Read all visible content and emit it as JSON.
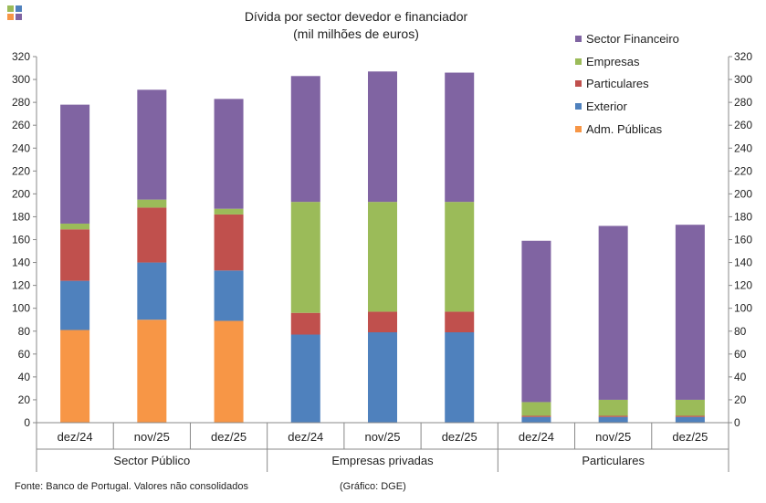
{
  "title_line1": "Dívida por sector devedor e financiador",
  "title_line2": "(mil milhões de euros)",
  "footer_source": "Fonte: Banco de Portugal. Valores não consolidados",
  "footer_credit": "(Gráfico: DGE)",
  "logo_colors": [
    "#9bbb59",
    "#4f81bd",
    "#f79646",
    "#8064a2"
  ],
  "chart_data": {
    "type": "bar",
    "stacked": true,
    "ylim": [
      0,
      320
    ],
    "yticks": [
      0,
      20,
      40,
      60,
      80,
      100,
      120,
      140,
      160,
      180,
      200,
      220,
      240,
      260,
      280,
      300,
      320
    ],
    "grid": false,
    "legend_position": "top-right",
    "groups": [
      {
        "label": "Sector Público",
        "categories": [
          "dez/24",
          "nov/25",
          "dez/25"
        ]
      },
      {
        "label": "Empresas privadas",
        "categories": [
          "dez/24",
          "nov/25",
          "dez/25"
        ]
      },
      {
        "label": "Particulares",
        "categories": [
          "dez/24",
          "nov/25",
          "dez/25"
        ]
      }
    ],
    "series": [
      {
        "name": "Adm. Públicas",
        "color": "#f79646",
        "values": [
          81,
          90,
          89,
          0,
          0,
          0,
          0,
          0,
          0
        ]
      },
      {
        "name": "Exterior",
        "color": "#4f81bd",
        "values": [
          43,
          50,
          44,
          77,
          79,
          79,
          5,
          5,
          5
        ]
      },
      {
        "name": "Particulares",
        "color": "#c0504d",
        "values": [
          45,
          48,
          49,
          19,
          18,
          18,
          1,
          1,
          1
        ]
      },
      {
        "name": "Empresas",
        "color": "#9bbb59",
        "values": [
          5,
          7,
          5,
          97,
          96,
          96,
          12,
          14,
          14
        ]
      },
      {
        "name": "Sector Financeiro",
        "color": "#8064a2",
        "values": [
          104,
          96,
          96,
          110,
          114,
          113,
          141,
          152,
          153
        ]
      }
    ]
  }
}
